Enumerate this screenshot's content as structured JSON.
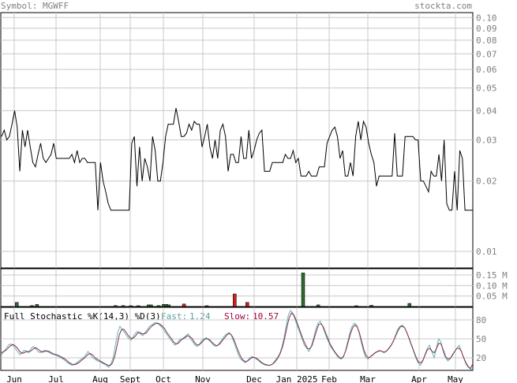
{
  "header": {
    "symbol_label": "Symbol: MGWFF",
    "site_label": "stockta.com"
  },
  "colors": {
    "text_gray": "#808080",
    "teal": "#5f9ea0",
    "crimson": "#a00040",
    "grid": "#c8c8c8",
    "frame": "#000000",
    "vol_up": "#2e6b2e",
    "vol_down": "#cc1f1f",
    "fast_line": "#5fb8b8",
    "slow_line": "#8a2a4a"
  },
  "months": [
    "Jun",
    "Jul",
    "Aug",
    "Sept",
    "Oct",
    "Nov",
    "Dec",
    "Jan 2025",
    "Feb",
    "Mar",
    "Apr",
    "May"
  ],
  "chart_data": [
    {
      "type": "line",
      "name": "price",
      "y_scale": "log",
      "ylim": [
        0.0085,
        0.105
      ],
      "y_ticks": [
        "0.10",
        "0.09",
        "0.08",
        "0.07",
        "0.06",
        "0.05",
        "0.04",
        "0.03",
        "0.02",
        "0.01"
      ],
      "x_ticks": [
        "Jun",
        "Jul",
        "Aug",
        "Sept",
        "Oct",
        "Nov",
        "Dec",
        "Jan 2025",
        "Feb",
        "Mar",
        "Apr",
        "May"
      ],
      "grid": true,
      "values": [
        0.031,
        0.033,
        0.03,
        0.031,
        0.035,
        0.04,
        0.034,
        0.022,
        0.033,
        0.028,
        0.033,
        0.028,
        0.024,
        0.023,
        0.026,
        0.029,
        0.025,
        0.024,
        0.025,
        0.026,
        0.029,
        0.025,
        0.025,
        0.025,
        0.025,
        0.025,
        0.025,
        0.026,
        0.024,
        0.027,
        0.024,
        0.025,
        0.025,
        0.024,
        0.024,
        0.024,
        0.024,
        0.015,
        0.024,
        0.02,
        0.018,
        0.016,
        0.015,
        0.015,
        0.015,
        0.015,
        0.015,
        0.015,
        0.015,
        0.015,
        0.029,
        0.031,
        0.019,
        0.028,
        0.02,
        0.025,
        0.023,
        0.02,
        0.031,
        0.027,
        0.02,
        0.02,
        0.024,
        0.031,
        0.035,
        0.035,
        0.035,
        0.041,
        0.036,
        0.031,
        0.031,
        0.032,
        0.035,
        0.033,
        0.036,
        0.035,
        0.035,
        0.028,
        0.031,
        0.035,
        0.028,
        0.025,
        0.03,
        0.025,
        0.033,
        0.035,
        0.031,
        0.022,
        0.026,
        0.026,
        0.024,
        0.024,
        0.031,
        0.025,
        0.025,
        0.033,
        0.025,
        0.027,
        0.03,
        0.032,
        0.033,
        0.022,
        0.022,
        0.022,
        0.024,
        0.024,
        0.024,
        0.024,
        0.024,
        0.026,
        0.025,
        0.025,
        0.027,
        0.024,
        0.025,
        0.021,
        0.021,
        0.021,
        0.022,
        0.021,
        0.021,
        0.021,
        0.023,
        0.023,
        0.023,
        0.029,
        0.031,
        0.033,
        0.034,
        0.031,
        0.025,
        0.027,
        0.021,
        0.021,
        0.024,
        0.021,
        0.031,
        0.036,
        0.03,
        0.036,
        0.034,
        0.029,
        0.026,
        0.024,
        0.019,
        0.021,
        0.021,
        0.021,
        0.021,
        0.021,
        0.021,
        0.032,
        0.021,
        0.021,
        0.021,
        0.031,
        0.031,
        0.031,
        0.031,
        0.03,
        0.03,
        0.02,
        0.02,
        0.019,
        0.018,
        0.022,
        0.021,
        0.021,
        0.026,
        0.02,
        0.03,
        0.016,
        0.015,
        0.015,
        0.022,
        0.015,
        0.027,
        0.025,
        0.015,
        0.015,
        0.015,
        0.015
      ]
    },
    {
      "type": "bar",
      "name": "volume",
      "y_ticks": [
        "0.15 M",
        "0.10 M",
        "0.05 M"
      ],
      "ylim": [
        0,
        0.18
      ],
      "unit": "M",
      "values": [
        0,
        0,
        0,
        0,
        0,
        0,
        0.02,
        0,
        0,
        0,
        0,
        0,
        0.005,
        0,
        0.01,
        0,
        0,
        0,
        0,
        0,
        0,
        0,
        0,
        0,
        0,
        0,
        0,
        0,
        0,
        0,
        0,
        0,
        0,
        0,
        0,
        0,
        0,
        0,
        0,
        0,
        0,
        0,
        0,
        0,
        0,
        0.005,
        0,
        0,
        0.005,
        0,
        0,
        0.004,
        0,
        0,
        0.004,
        0,
        0,
        0,
        0.008,
        0.008,
        0,
        0,
        0.005,
        0,
        0.01,
        0.01,
        0.008,
        0,
        0,
        0,
        0,
        0,
        0.012,
        0,
        0,
        0,
        0,
        0,
        0,
        0,
        0,
        0.004,
        0,
        0,
        0,
        0,
        0,
        0,
        0,
        0,
        0,
        0,
        0.06,
        0,
        0,
        0,
        0,
        0.02,
        0,
        0,
        0,
        0,
        0,
        0,
        0,
        0,
        0,
        0,
        0,
        0,
        0,
        0,
        0,
        0,
        0,
        0,
        0,
        0,
        0,
        0.16,
        0,
        0,
        0,
        0,
        0,
        0.008,
        0,
        0,
        0,
        0,
        0,
        0,
        0,
        0,
        0,
        0,
        0,
        0,
        0,
        0,
        0.004,
        0,
        0,
        0,
        0,
        0,
        0.006,
        0,
        0,
        0,
        0,
        0,
        0,
        0,
        0,
        0,
        0,
        0,
        0,
        0,
        0,
        0.015,
        0,
        0,
        0,
        0,
        0,
        0,
        0,
        0,
        0,
        0,
        0,
        0,
        0,
        0,
        0,
        0,
        0,
        0,
        0,
        0,
        0,
        0,
        0,
        0,
        0
      ],
      "direction": [
        "u",
        "u",
        "u",
        "u",
        "u",
        "u",
        "u",
        "u",
        "u",
        "u",
        "u",
        "u",
        "u",
        "u",
        "u",
        "u",
        "u",
        "u",
        "u",
        "u",
        "u",
        "u",
        "u",
        "u",
        "u",
        "u",
        "u",
        "u",
        "u",
        "u",
        "u",
        "u",
        "u",
        "u",
        "u",
        "u",
        "u",
        "u",
        "u",
        "u",
        "u",
        "u",
        "u",
        "u",
        "u",
        "u",
        "u",
        "u",
        "u",
        "u",
        "u",
        "u",
        "u",
        "u",
        "u",
        "u",
        "u",
        "u",
        "u",
        "u",
        "u",
        "u",
        "u",
        "u",
        "u",
        "u",
        "u",
        "u",
        "u",
        "u",
        "u",
        "u",
        "d",
        "u",
        "u",
        "u",
        "u",
        "u",
        "u",
        "u",
        "u",
        "u",
        "u",
        "u",
        "u",
        "u",
        "u",
        "u",
        "u",
        "u",
        "u",
        "u",
        "d",
        "u",
        "u",
        "u",
        "u",
        "d",
        "u",
        "u",
        "u",
        "u",
        "u",
        "u",
        "u",
        "u",
        "u",
        "u",
        "u",
        "u",
        "u",
        "u",
        "u",
        "u",
        "u",
        "u",
        "u",
        "u",
        "u",
        "u",
        "u",
        "u",
        "u",
        "u",
        "u",
        "u",
        "u",
        "u",
        "u",
        "u",
        "u",
        "u",
        "u",
        "u",
        "u",
        "u",
        "u",
        "u",
        "u",
        "u",
        "u",
        "u",
        "u",
        "u",
        "u",
        "u",
        "u",
        "u",
        "u",
        "u",
        "u",
        "u",
        "u",
        "u",
        "u",
        "u",
        "u",
        "u",
        "u",
        "u",
        "u",
        "u",
        "u",
        "u",
        "u",
        "u",
        "u",
        "u",
        "u",
        "u",
        "u",
        "u",
        "u",
        "u",
        "u",
        "u",
        "u",
        "u",
        "u",
        "u",
        "u",
        "u"
      ]
    },
    {
      "type": "line",
      "name": "stochastic",
      "title": "Full Stochastic %K(14,3) %D(3)",
      "fast_label": "Fast:",
      "fast_value": "1.24",
      "slow_label": "Slow:",
      "slow_value": "10.57",
      "ylim": [
        0,
        100
      ],
      "y_ticks": [
        "80",
        "50",
        "20"
      ],
      "fast": [
        25,
        30,
        35,
        40,
        42,
        40,
        35,
        30,
        25,
        28,
        32,
        30,
        28,
        35,
        38,
        34,
        30,
        28,
        30,
        32,
        30,
        28,
        26,
        25,
        24,
        22,
        20,
        18,
        15,
        12,
        10,
        8,
        10,
        12,
        15,
        18,
        20,
        25,
        30,
        25,
        20,
        18,
        15,
        14,
        12,
        10,
        8,
        5,
        10,
        20,
        40,
        60,
        70,
        65,
        60,
        55,
        50,
        48,
        55,
        60,
        62,
        58,
        55,
        60,
        65,
        70,
        72,
        75,
        76,
        73,
        70,
        65,
        60,
        55,
        50,
        45,
        40,
        42,
        48,
        50,
        52,
        55,
        58,
        50,
        45,
        40,
        38,
        42,
        48,
        50,
        52,
        48,
        45,
        40,
        38,
        40,
        45,
        50,
        55,
        58,
        60,
        55,
        45,
        35,
        25,
        18,
        15,
        12,
        15,
        20,
        22,
        20,
        18,
        15,
        12,
        10,
        8,
        8,
        8,
        10,
        15,
        20,
        25,
        35,
        50,
        70,
        88,
        95,
        90,
        80,
        70,
        60,
        50,
        40,
        35,
        30,
        38,
        50,
        65,
        75,
        78,
        70,
        60,
        50,
        42,
        35,
        30,
        25,
        20,
        18,
        20,
        30,
        45,
        60,
        70,
        75,
        72,
        60,
        45,
        30,
        20,
        18,
        22,
        25,
        28,
        30,
        32,
        30,
        28,
        30,
        35,
        40,
        45,
        55,
        65,
        70,
        72,
        68,
        60,
        50,
        40,
        30,
        20,
        12,
        8,
        15,
        25,
        35,
        40,
        30,
        20,
        35,
        50,
        45,
        30,
        20,
        15,
        18,
        25,
        30,
        35,
        40,
        30,
        20,
        10,
        5,
        2,
        1.24
      ],
      "slow": [
        28,
        30,
        32,
        36,
        39,
        41,
        39,
        35,
        30,
        27,
        28,
        30,
        30,
        31,
        34,
        36,
        34,
        31,
        29,
        30,
        31,
        30,
        28,
        26,
        25,
        24,
        22,
        20,
        18,
        15,
        12,
        10,
        9,
        10,
        12,
        15,
        18,
        21,
        25,
        27,
        25,
        21,
        18,
        16,
        14,
        12,
        10,
        8,
        8,
        12,
        23,
        40,
        57,
        65,
        65,
        60,
        55,
        51,
        51,
        54,
        59,
        60,
        58,
        58,
        60,
        65,
        69,
        72,
        74,
        75,
        73,
        70,
        66,
        60,
        55,
        50,
        45,
        42,
        43,
        47,
        50,
        52,
        55,
        54,
        51,
        45,
        41,
        40,
        43,
        47,
        50,
        50,
        48,
        44,
        41,
        39,
        41,
        45,
        50,
        54,
        58,
        58,
        53,
        45,
        35,
        26,
        19,
        15,
        14,
        16,
        19,
        21,
        20,
        18,
        15,
        12,
        10,
        9,
        8,
        9,
        11,
        15,
        20,
        27,
        37,
        52,
        69,
        84,
        91,
        88,
        80,
        70,
        60,
        50,
        42,
        35,
        34,
        39,
        51,
        63,
        73,
        74,
        69,
        60,
        51,
        42,
        36,
        30,
        25,
        21,
        19,
        23,
        32,
        45,
        58,
        68,
        72,
        69,
        59,
        45,
        32,
        23,
        20,
        22,
        25,
        28,
        30,
        31,
        30,
        29,
        31,
        35,
        40,
        47,
        55,
        63,
        69,
        70,
        67,
        59,
        50,
        40,
        30,
        21,
        13,
        12,
        16,
        25,
        33,
        35,
        30,
        28,
        35,
        43,
        42,
        32,
        22,
        18,
        19,
        24,
        30,
        35,
        35,
        30,
        20,
        12,
        6,
        3,
        10.57
      ]
    }
  ]
}
